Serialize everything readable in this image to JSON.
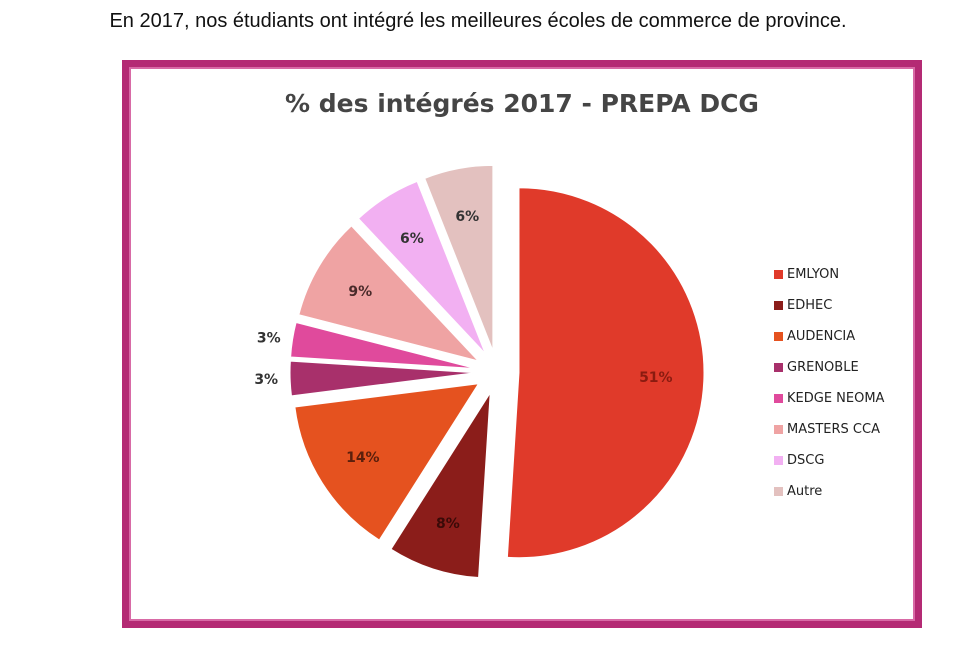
{
  "caption": "En 2017, nos étudiants ont intégré les meilleures écoles de commerce de province.",
  "chart_data": {
    "type": "pie",
    "title": "% des intégrés 2017 - PREPA DCG",
    "legend_position": "right",
    "slices": [
      {
        "name": "EMLYON",
        "value": 51,
        "label": "51%",
        "color": "#e03a2a",
        "label_color": "#8a1b10"
      },
      {
        "name": "EDHEC",
        "value": 8,
        "label": "8%",
        "color": "#8b1d1a",
        "label_color": "#3a0a08"
      },
      {
        "name": "AUDENCIA",
        "value": 14,
        "label": "14%",
        "color": "#e5521f",
        "label_color": "#5a1f0c"
      },
      {
        "name": "GRENOBLE",
        "value": 3,
        "label": "3%",
        "color": "#a8306b",
        "label_color": "#333333"
      },
      {
        "name": "KEDGE NEOMA",
        "value": 3,
        "label": "3%",
        "color": "#e04a9c",
        "label_color": "#333333"
      },
      {
        "name": "MASTERS CCA",
        "value": 9,
        "label": "9%",
        "color": "#efa3a3",
        "label_color": "#4a2a2a"
      },
      {
        "name": "DSCG",
        "value": 6,
        "label": "6%",
        "color": "#f2b0f2",
        "label_color": "#333333"
      },
      {
        "name": "Autre",
        "value": 6,
        "label": "6%",
        "color": "#e3c1bf",
        "label_color": "#333333"
      }
    ]
  }
}
